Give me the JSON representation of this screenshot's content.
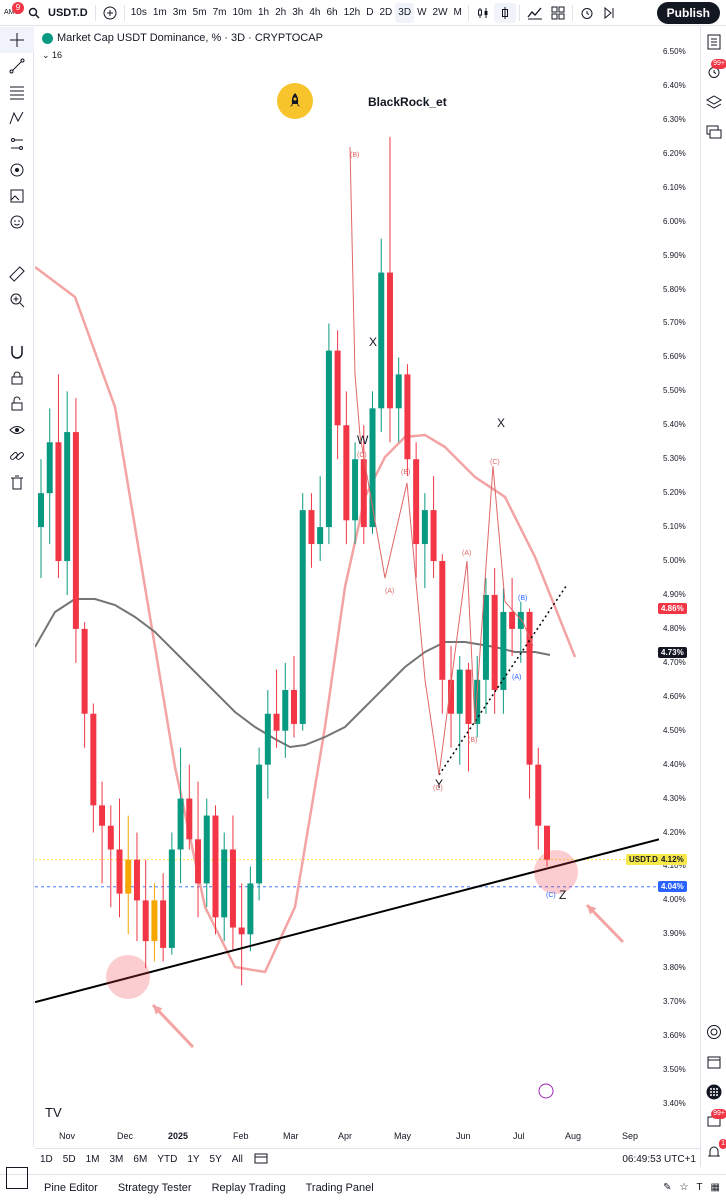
{
  "topbar": {
    "badge": "9",
    "symbol": "USDT.D",
    "timeframes": [
      "10s",
      "1m",
      "3m",
      "5m",
      "7m",
      "10m",
      "1h",
      "2h",
      "3h",
      "4h",
      "6h",
      "12h",
      "D",
      "2D",
      "3D",
      "W",
      "2W",
      "M"
    ],
    "active_timeframe": "3D",
    "publish": "Publish"
  },
  "legend": {
    "title": "Market Cap USDT Dominance, % · 3D · CRYPTOCAP",
    "indicator_count": "16"
  },
  "annotations": {
    "author": "BlackRock_et",
    "wave_labels": [
      "X",
      "W",
      "X",
      "Y",
      "Z"
    ],
    "sub_labels": [
      "(B)",
      "(C)",
      "(A)",
      "(B)",
      "(A)",
      "(C)",
      "(B)",
      "(C)",
      "(B)",
      "(A)",
      "(C)"
    ]
  },
  "price_axis": {
    "labels": [
      "6.50%",
      "6.40%",
      "6.30%",
      "6.20%",
      "6.10%",
      "6.00%",
      "5.90%",
      "5.80%",
      "5.70%",
      "5.60%",
      "5.50%",
      "5.40%",
      "5.30%",
      "5.20%",
      "5.10%",
      "5.00%",
      "4.90%",
      "4.80%",
      "4.70%",
      "4.60%",
      "4.50%",
      "4.40%",
      "4.30%",
      "4.20%",
      "4.10%",
      "4.00%",
      "3.90%",
      "3.80%",
      "3.70%",
      "3.60%",
      "3.50%",
      "3.40%"
    ],
    "tags": {
      "red": "4.86%",
      "dark": "4.73%",
      "symbol": "USDT.D",
      "current": "4.12%",
      "blue": "4.04%"
    },
    "colors": {
      "red": "#f23645",
      "dark": "#131722",
      "current": "#f7e94a",
      "blue": "#2962ff"
    }
  },
  "time_axis": {
    "labels": [
      "Nov",
      "Dec",
      "2025",
      "Feb",
      "Mar",
      "Apr",
      "May",
      "Jun",
      "Jul",
      "Aug",
      "Sep"
    ]
  },
  "ranges": {
    "items": [
      "1D",
      "5D",
      "1M",
      "3M",
      "6M",
      "YTD",
      "1Y",
      "5Y",
      "All"
    ],
    "clock": "06:49:53 UTC+1"
  },
  "bottom": {
    "items": [
      "Pine Editor",
      "Strategy Tester",
      "Replay Trading",
      "Trading Panel"
    ]
  },
  "right_badges": {
    "top": "99+",
    "bottom": "99+",
    "alert": "1"
  },
  "chart_data": {
    "type": "candlestick",
    "title": "Market Cap USDT Dominance, % · 3D · CRYPTOCAP",
    "y_unit": "%",
    "ylim": [
      3.35,
      6.55
    ],
    "x_range": [
      "Oct",
      "Sep"
    ],
    "candles": [
      {
        "o": 5.1,
        "h": 5.3,
        "l": 4.95,
        "c": 5.2
      },
      {
        "o": 5.2,
        "h": 5.45,
        "l": 5.05,
        "c": 5.35
      },
      {
        "o": 5.35,
        "h": 5.55,
        "l": 4.95,
        "c": 5.0
      },
      {
        "o": 5.0,
        "h": 5.5,
        "l": 4.9,
        "c": 5.38
      },
      {
        "o": 5.38,
        "h": 5.48,
        "l": 4.7,
        "c": 4.8
      },
      {
        "o": 4.8,
        "h": 4.82,
        "l": 4.45,
        "c": 4.55
      },
      {
        "o": 4.55,
        "h": 4.58,
        "l": 4.2,
        "c": 4.28
      },
      {
        "o": 4.28,
        "h": 4.35,
        "l": 4.05,
        "c": 4.22
      },
      {
        "o": 4.22,
        "h": 4.28,
        "l": 3.98,
        "c": 4.15
      },
      {
        "o": 4.15,
        "h": 4.3,
        "l": 3.95,
        "c": 4.02
      },
      {
        "o": 4.02,
        "h": 4.25,
        "l": 3.9,
        "c": 4.12
      },
      {
        "o": 4.12,
        "h": 4.2,
        "l": 3.88,
        "c": 4.0
      },
      {
        "o": 4.0,
        "h": 4.12,
        "l": 3.8,
        "c": 3.88
      },
      {
        "o": 3.88,
        "h": 4.05,
        "l": 3.82,
        "c": 4.0
      },
      {
        "o": 4.0,
        "h": 4.08,
        "l": 3.82,
        "c": 3.86
      },
      {
        "o": 3.86,
        "h": 4.2,
        "l": 3.84,
        "c": 4.15
      },
      {
        "o": 4.15,
        "h": 4.45,
        "l": 4.05,
        "c": 4.3
      },
      {
        "o": 4.3,
        "h": 4.4,
        "l": 4.15,
        "c": 4.18
      },
      {
        "o": 4.18,
        "h": 4.35,
        "l": 3.95,
        "c": 4.05
      },
      {
        "o": 4.05,
        "h": 4.3,
        "l": 3.98,
        "c": 4.25
      },
      {
        "o": 4.25,
        "h": 4.28,
        "l": 3.9,
        "c": 3.95
      },
      {
        "o": 3.95,
        "h": 4.2,
        "l": 3.88,
        "c": 4.15
      },
      {
        "o": 4.15,
        "h": 4.25,
        "l": 3.85,
        "c": 3.92
      },
      {
        "o": 3.92,
        "h": 4.05,
        "l": 3.75,
        "c": 3.9
      },
      {
        "o": 3.9,
        "h": 4.1,
        "l": 3.85,
        "c": 4.05
      },
      {
        "o": 4.05,
        "h": 4.45,
        "l": 4.0,
        "c": 4.4
      },
      {
        "o": 4.4,
        "h": 4.62,
        "l": 4.3,
        "c": 4.55
      },
      {
        "o": 4.55,
        "h": 4.68,
        "l": 4.45,
        "c": 4.5
      },
      {
        "o": 4.5,
        "h": 4.7,
        "l": 4.42,
        "c": 4.62
      },
      {
        "o": 4.62,
        "h": 4.72,
        "l": 4.48,
        "c": 4.52
      },
      {
        "o": 4.52,
        "h": 5.2,
        "l": 4.5,
        "c": 5.15
      },
      {
        "o": 5.15,
        "h": 5.2,
        "l": 4.98,
        "c": 5.05
      },
      {
        "o": 5.05,
        "h": 5.25,
        "l": 5.0,
        "c": 5.1
      },
      {
        "o": 5.1,
        "h": 5.7,
        "l": 5.05,
        "c": 5.62
      },
      {
        "o": 5.62,
        "h": 5.68,
        "l": 5.3,
        "c": 5.4
      },
      {
        "o": 5.4,
        "h": 5.5,
        "l": 5.05,
        "c": 5.12
      },
      {
        "o": 5.12,
        "h": 5.35,
        "l": 5.05,
        "c": 5.3
      },
      {
        "o": 5.3,
        "h": 5.4,
        "l": 5.05,
        "c": 5.1
      },
      {
        "o": 5.1,
        "h": 5.5,
        "l": 5.08,
        "c": 5.45
      },
      {
        "o": 5.45,
        "h": 5.95,
        "l": 5.38,
        "c": 5.85
      },
      {
        "o": 5.85,
        "h": 6.25,
        "l": 5.35,
        "c": 5.45
      },
      {
        "o": 5.45,
        "h": 5.6,
        "l": 5.35,
        "c": 5.55
      },
      {
        "o": 5.55,
        "h": 5.58,
        "l": 5.25,
        "c": 5.3
      },
      {
        "o": 5.3,
        "h": 5.35,
        "l": 4.95,
        "c": 5.05
      },
      {
        "o": 5.05,
        "h": 5.2,
        "l": 4.92,
        "c": 5.15
      },
      {
        "o": 5.15,
        "h": 5.25,
        "l": 4.95,
        "c": 5.0
      },
      {
        "o": 5.0,
        "h": 5.02,
        "l": 4.55,
        "c": 4.65
      },
      {
        "o": 4.65,
        "h": 4.75,
        "l": 4.45,
        "c": 4.55
      },
      {
        "o": 4.55,
        "h": 4.72,
        "l": 4.4,
        "c": 4.68
      },
      {
        "o": 4.68,
        "h": 4.7,
        "l": 4.38,
        "c": 4.52
      },
      {
        "o": 4.52,
        "h": 4.72,
        "l": 4.48,
        "c": 4.65
      },
      {
        "o": 4.65,
        "h": 4.95,
        "l": 4.55,
        "c": 4.9
      },
      {
        "o": 4.9,
        "h": 4.98,
        "l": 4.55,
        "c": 4.62
      },
      {
        "o": 4.62,
        "h": 4.92,
        "l": 4.55,
        "c": 4.85
      },
      {
        "o": 4.85,
        "h": 4.95,
        "l": 4.72,
        "c": 4.8
      },
      {
        "o": 4.8,
        "h": 4.88,
        "l": 4.7,
        "c": 4.85
      },
      {
        "o": 4.85,
        "h": 4.86,
        "l": 4.3,
        "c": 4.4
      },
      {
        "o": 4.4,
        "h": 4.45,
        "l": 4.15,
        "c": 4.22
      },
      {
        "o": 4.22,
        "h": 4.22,
        "l": 4.1,
        "c": 4.12
      }
    ],
    "overlays": [
      {
        "name": "ma-grey",
        "color": "#757575",
        "values": [
          4.75,
          4.85,
          4.88,
          4.88,
          4.86,
          4.82,
          4.75,
          4.66,
          4.57,
          4.5,
          4.49,
          4.49,
          4.51,
          4.55,
          4.6,
          4.65,
          4.7,
          4.74,
          4.75,
          4.74,
          4.73
        ]
      },
      {
        "name": "ma-pink",
        "color": "#f4a3a3",
        "values": [
          5.87,
          5.6,
          5.1,
          4.4,
          3.9,
          3.78,
          4.2,
          4.9,
          5.3,
          5.35,
          5.2,
          4.88
        ]
      }
    ],
    "trendlines": [
      {
        "name": "support-line",
        "from": [
          "Oct",
          3.7
        ],
        "to": [
          "Sep",
          4.18
        ]
      },
      {
        "name": "dotted-wedge",
        "from": [
          "May",
          4.37
        ],
        "to": [
          "Jul",
          4.93
        ]
      }
    ]
  }
}
